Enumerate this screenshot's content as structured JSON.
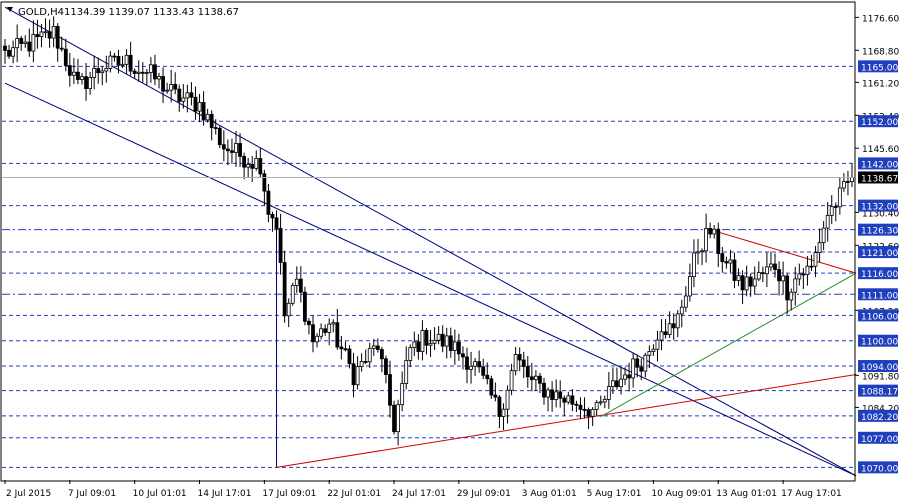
{
  "header": {
    "symbol_label": "GOLD,H4",
    "ohlc_text": "1134.39 1139.07 1133.43 1138.67",
    "dropdown_icon": "triangle-down-icon"
  },
  "colors": {
    "background": "#ffffff",
    "candle": "#000000",
    "dashed_level": "#1f3fbf",
    "price_marker_bg": "#1f3fbf",
    "current_marker_bg": "#000000",
    "channel_line": "#00007a",
    "triangle_red": "#d40000",
    "trend_green": "#2a8a2a",
    "axis": "#000000"
  },
  "chart_data": {
    "type": "candlestick",
    "title": "GOLD,H4",
    "ylim": [
      1067,
      1180
    ],
    "y_ticks": [
      "1176.60",
      "1168.80",
      "1161.20",
      "1153.40",
      "1145.60",
      "1130.40",
      "1122.60",
      "1107.20",
      "1091.80",
      "1084.20"
    ],
    "y_tick_values": [
      1176.6,
      1168.8,
      1161.2,
      1153.4,
      1145.6,
      1130.4,
      1122.6,
      1107.2,
      1091.8,
      1084.2
    ],
    "x_ticks": [
      "2 Jul 2015",
      "7 Jul 09:01",
      "10 Jul 01:01",
      "14 Jul 17:01",
      "17 Jul 09:01",
      "22 Jul 01:01",
      "24 Jul 17:01",
      "29 Jul 09:01",
      "3 Aug 01:01",
      "5 Aug 17:01",
      "10 Aug 09:01",
      "13 Aug 01:01",
      "17 Aug 17:01"
    ],
    "x_tick_positions": [
      0,
      16,
      32,
      48,
      64,
      80,
      96,
      112,
      128,
      144,
      160,
      176,
      192
    ],
    "bar_count": 210,
    "horizontal_levels": [
      {
        "value": 1165.0,
        "label": "1165.00",
        "style": "dashed"
      },
      {
        "value": 1152.0,
        "label": "1152.00",
        "style": "dashed"
      },
      {
        "value": 1142.0,
        "label": "1142.00",
        "style": "dashed"
      },
      {
        "value": 1132.0,
        "label": "1132.00",
        "style": "dashed"
      },
      {
        "value": 1126.3,
        "label": "1126.30",
        "style": "dashdot"
      },
      {
        "value": 1121.0,
        "label": "1121.00",
        "style": "dashed"
      },
      {
        "value": 1116.0,
        "label": "1116.00",
        "style": "dashed"
      },
      {
        "value": 1111.0,
        "label": "1111.00",
        "style": "dashdot"
      },
      {
        "value": 1106.0,
        "label": "1106.00",
        "style": "dashed"
      },
      {
        "value": 1100.0,
        "label": "1100.00",
        "style": "dashed"
      },
      {
        "value": 1094.0,
        "label": "1094.00",
        "style": "dashed"
      },
      {
        "value": 1088.17,
        "label": "1088.17",
        "style": "dashed"
      },
      {
        "value": 1082.2,
        "label": "1082.20",
        "style": "dashed"
      },
      {
        "value": 1077.0,
        "label": "1077.00",
        "style": "dashed"
      },
      {
        "value": 1070.0,
        "label": "1070.00",
        "style": "dashed"
      }
    ],
    "current_price": {
      "value": 1138.67,
      "label": "1138.67"
    },
    "anchors": [
      [
        0,
        1168
      ],
      [
        8,
        1171
      ],
      [
        12,
        1173
      ],
      [
        18,
        1160
      ],
      [
        24,
        1165
      ],
      [
        30,
        1166
      ],
      [
        36,
        1163
      ],
      [
        42,
        1158
      ],
      [
        48,
        1156
      ],
      [
        54,
        1146
      ],
      [
        60,
        1143
      ],
      [
        63,
        1142
      ],
      [
        65,
        1131
      ],
      [
        67,
        1128
      ],
      [
        69,
        1106
      ],
      [
        72,
        1114
      ],
      [
        76,
        1100
      ],
      [
        80,
        1104
      ],
      [
        86,
        1092
      ],
      [
        92,
        1099
      ],
      [
        96,
        1080
      ],
      [
        100,
        1098
      ],
      [
        104,
        1101
      ],
      [
        110,
        1099
      ],
      [
        116,
        1094
      ],
      [
        122,
        1083
      ],
      [
        126,
        1096
      ],
      [
        130,
        1090
      ],
      [
        136,
        1087
      ],
      [
        142,
        1085
      ],
      [
        146,
        1083
      ],
      [
        150,
        1089
      ],
      [
        154,
        1093
      ],
      [
        158,
        1096
      ],
      [
        162,
        1104
      ],
      [
        165,
        1102
      ],
      [
        168,
        1112
      ],
      [
        171,
        1122
      ],
      [
        174,
        1126
      ],
      [
        178,
        1118
      ],
      [
        182,
        1113
      ],
      [
        186,
        1115
      ],
      [
        190,
        1118
      ],
      [
        193,
        1112
      ],
      [
        196,
        1116
      ],
      [
        199,
        1117
      ],
      [
        201,
        1124
      ],
      [
        203,
        1130
      ],
      [
        206,
        1134
      ],
      [
        209,
        1138.67
      ]
    ],
    "trendlines": [
      {
        "name": "channel-upper",
        "color": "channel_line",
        "points": [
          [
            0,
            1179
          ],
          [
            210,
            1068
          ]
        ]
      },
      {
        "name": "channel-lower",
        "color": "channel_line",
        "points": [
          [
            0,
            1161
          ],
          [
            210,
            1068
          ]
        ]
      },
      {
        "name": "triangle-top",
        "color": "triangle_red",
        "points": [
          [
            174,
            1126.3
          ],
          [
            210,
            1116
          ]
        ]
      },
      {
        "name": "support-low",
        "color": "triangle_red",
        "points": [
          [
            67,
            1070
          ],
          [
            210,
            1092
          ]
        ]
      },
      {
        "name": "uptrend-green",
        "color": "trend_green",
        "points": [
          [
            147,
            1082
          ],
          [
            210,
            1116
          ]
        ]
      },
      {
        "name": "drop-vertical",
        "color": "channel_line",
        "points": [
          [
            67,
            1128
          ],
          [
            67,
            1070
          ]
        ]
      }
    ]
  }
}
